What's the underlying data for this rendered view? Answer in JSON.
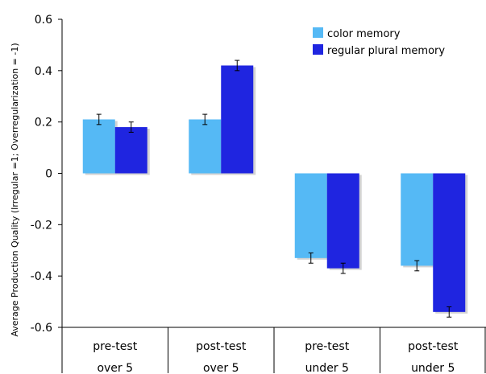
{
  "chart_data": {
    "type": "bar",
    "ylabel": "Average Production Quality (Irregular =1; Overregularization = -1)",
    "ylim": [
      -0.6,
      0.6
    ],
    "yticks": [
      "0.6",
      "0.4",
      "0.2",
      "0",
      "-0.2",
      "-0.4",
      "-0.6"
    ],
    "categories": [
      {
        "line1": "pre-test",
        "line2": "over 5"
      },
      {
        "line1": "post-test",
        "line2": "over 5"
      },
      {
        "line1": "pre-test",
        "line2": "under 5"
      },
      {
        "line1": "post-test",
        "line2": "under 5"
      }
    ],
    "series": [
      {
        "name": "color memory",
        "color": "#55b9f5",
        "values": [
          0.21,
          0.21,
          -0.33,
          -0.36
        ],
        "errors": [
          0.02,
          0.02,
          0.02,
          0.02
        ]
      },
      {
        "name": "regular plural memory",
        "color": "#1f25e0",
        "values": [
          0.18,
          0.42,
          -0.37,
          -0.54
        ],
        "errors": [
          0.02,
          0.02,
          0.02,
          0.02
        ]
      }
    ],
    "legend_position": "top-right",
    "grid": false
  }
}
